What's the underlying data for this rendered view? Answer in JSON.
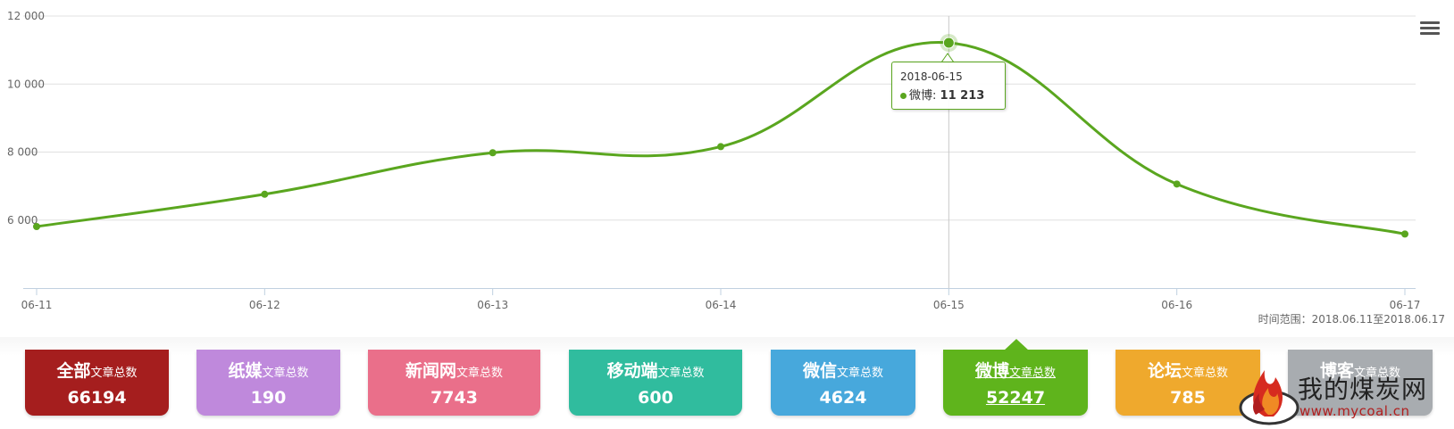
{
  "chart_data": {
    "type": "line",
    "x": [
      "06-11",
      "06-12",
      "06-13",
      "06-14",
      "06-15",
      "06-16",
      "06-17"
    ],
    "series": [
      {
        "name": "微博",
        "values": [
          5810,
          6760,
          7980,
          8160,
          11213,
          7060,
          5590
        ]
      }
    ],
    "y_ticks": [
      "6 000",
      "8 000",
      "10 000",
      "12 000"
    ],
    "ylim": [
      4000,
      12000
    ],
    "grid": true,
    "line_color": "#5aa61f",
    "smooth": true
  },
  "tooltip": {
    "date": "2018-06-15",
    "series_label": "微博:",
    "value": "11 213"
  },
  "range_text": "时间范围：2018.06.11至2018.06.17",
  "menu_icon": "hamburger-menu-icon",
  "cards": [
    {
      "name": "全部",
      "sub": "文章总数",
      "count": "66194",
      "color": "#a51e1e"
    },
    {
      "name": "纸媒",
      "sub": "文章总数",
      "count": "190",
      "color": "#bf89dc"
    },
    {
      "name": "新闻网",
      "sub": "文章总数",
      "count": "7743",
      "color": "#ea6f8a"
    },
    {
      "name": "移动端",
      "sub": "文章总数",
      "count": "600",
      "color": "#30bc9e"
    },
    {
      "name": "微信",
      "sub": "文章总数",
      "count": "4624",
      "color": "#47a8dc"
    },
    {
      "name": "微博",
      "sub": "文章总数",
      "count": "52247",
      "color": "#5fb41c",
      "active": true
    },
    {
      "name": "论坛",
      "sub": "文章总数",
      "count": "785",
      "color": "#efa92d"
    },
    {
      "name": "博客",
      "sub": "文章总数",
      "count": "",
      "color": "#a8acb0"
    }
  ],
  "logo": {
    "text": "我的煤炭网",
    "url": "www.mycoal.cn"
  }
}
